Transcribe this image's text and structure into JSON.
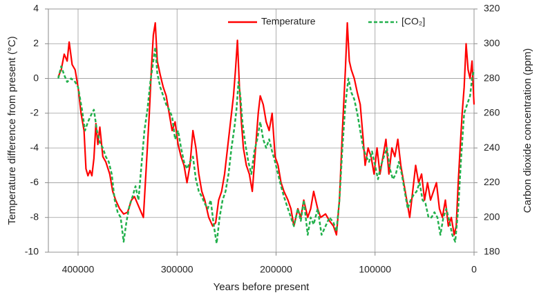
{
  "chart_data": {
    "type": "line",
    "xlabel": "Years before present",
    "ylabel": "Temperature difference from present (°C)",
    "y2label": "Carbon dioxide concentration (ppm)",
    "xlim": [
      430000,
      0
    ],
    "xticks": [
      400000,
      300000,
      200000,
      100000,
      0
    ],
    "ylim": [
      -10,
      4
    ],
    "yticks": [
      -10,
      -8,
      -6,
      -4,
      -2,
      0,
      2,
      4
    ],
    "y2lim": [
      180,
      320
    ],
    "y2ticks": [
      180,
      200,
      220,
      240,
      260,
      280,
      300,
      320
    ],
    "grid": true,
    "legend": "top-right",
    "series": [
      {
        "name": "Temperature",
        "color": "#ff0000",
        "dash": false,
        "axis": "y",
        "x": [
          420000,
          417000,
          414000,
          411000,
          409000,
          406000,
          403000,
          400000,
          397000,
          394000,
          392000,
          390000,
          388000,
          386000,
          384000,
          382000,
          380000,
          378000,
          375000,
          372000,
          368000,
          365000,
          362000,
          358000,
          354000,
          350000,
          346000,
          343000,
          340000,
          337000,
          334000,
          331000,
          328000,
          326000,
          324000,
          322000,
          320000,
          317000,
          314000,
          311000,
          308000,
          305000,
          302000,
          299000,
          296000,
          293000,
          290000,
          287000,
          284000,
          281000,
          278000,
          275000,
          272000,
          268000,
          264000,
          261000,
          258000,
          255000,
          252000,
          249000,
          246000,
          243000,
          241000,
          239000,
          237000,
          235000,
          233000,
          230000,
          227000,
          224000,
          222000,
          220000,
          218000,
          216000,
          213000,
          210000,
          207000,
          204000,
          201000,
          198000,
          195000,
          192000,
          188000,
          185000,
          182000,
          178000,
          175000,
          172000,
          168000,
          165000,
          162000,
          158000,
          155000,
          150000,
          146000,
          142000,
          139000,
          136000,
          133000,
          130000,
          128000,
          126000,
          124000,
          121000,
          118000,
          115000,
          112000,
          110000,
          107000,
          104000,
          101000,
          98000,
          95000,
          92000,
          89000,
          86000,
          83000,
          80000,
          77000,
          74000,
          71000,
          68000,
          65000,
          62000,
          59000,
          56000,
          53000,
          50000,
          47000,
          44000,
          41000,
          38000,
          35000,
          32000,
          29000,
          26000,
          23000,
          20000,
          18000,
          16000,
          14000,
          12000,
          10000,
          8000,
          6000,
          4000,
          2000,
          0
        ],
        "values": [
          0.1,
          0.5,
          1.4,
          1.0,
          2.1,
          0.8,
          0.5,
          -0.5,
          -2.0,
          -3.0,
          -5.2,
          -5.6,
          -5.3,
          -5.6,
          -4.6,
          -2.6,
          -3.8,
          -2.8,
          -4.5,
          -4.8,
          -5.5,
          -6.5,
          -7.0,
          -7.5,
          -7.8,
          -7.7,
          -7.0,
          -6.8,
          -7.2,
          -7.6,
          -8.0,
          -5.0,
          -2.0,
          0.5,
          2.5,
          3.2,
          1.0,
          0.2,
          -0.5,
          -1.0,
          -2.0,
          -3.0,
          -2.5,
          -3.8,
          -4.5,
          -5.0,
          -6.0,
          -5.0,
          -3.0,
          -4.0,
          -5.5,
          -6.5,
          -7.0,
          -8.0,
          -8.5,
          -8.3,
          -7.0,
          -6.5,
          -5.5,
          -4.0,
          -2.5,
          -1.0,
          0.5,
          2.2,
          -0.5,
          -2.5,
          -4.0,
          -5.0,
          -5.5,
          -6.5,
          -5.0,
          -3.5,
          -2.0,
          -1.0,
          -1.5,
          -2.5,
          -3.0,
          -2.0,
          -4.5,
          -5.0,
          -6.0,
          -6.5,
          -7.0,
          -7.5,
          -8.5,
          -7.5,
          -8.0,
          -7.0,
          -8.0,
          -7.5,
          -6.5,
          -7.5,
          -8.0,
          -7.8,
          -8.2,
          -8.5,
          -9.0,
          -7.0,
          -3.0,
          0.5,
          3.2,
          1.0,
          0.5,
          0.0,
          -0.8,
          -1.5,
          -3.5,
          -5.0,
          -4.0,
          -4.5,
          -5.5,
          -4.0,
          -5.5,
          -4.5,
          -3.5,
          -5.5,
          -4.0,
          -4.5,
          -3.5,
          -5.0,
          -6.0,
          -7.0,
          -8.0,
          -6.5,
          -5.0,
          -6.0,
          -5.5,
          -7.0,
          -6.0,
          -7.0,
          -6.5,
          -6.0,
          -7.5,
          -8.0,
          -7.0,
          -8.5,
          -8.0,
          -9.0,
          -8.5,
          -6.0,
          -4.0,
          -2.0,
          -0.5,
          2.0,
          0.5,
          0.0,
          1.0,
          -1.5
        ]
      },
      {
        "name": "[CO₂]",
        "color": "#22b04c",
        "dash": true,
        "axis": "y2",
        "x": [
          420000,
          417000,
          414000,
          411000,
          407000,
          403000,
          400000,
          396000,
          393000,
          390000,
          386000,
          384000,
          381000,
          378000,
          375000,
          372000,
          369000,
          366000,
          363000,
          360000,
          357000,
          354000,
          351000,
          348000,
          345000,
          342000,
          339000,
          336000,
          333000,
          330000,
          327000,
          324000,
          322000,
          320000,
          317000,
          314000,
          311000,
          308000,
          305000,
          302000,
          299000,
          296000,
          293000,
          290000,
          287000,
          284000,
          281000,
          278000,
          275000,
          272000,
          269000,
          266000,
          263000,
          260000,
          257000,
          254000,
          251000,
          248000,
          245000,
          242000,
          240000,
          238000,
          236000,
          234000,
          231000,
          228000,
          225000,
          222000,
          219000,
          216000,
          213000,
          210000,
          207000,
          204000,
          201000,
          198000,
          195000,
          192000,
          188000,
          185000,
          182000,
          178000,
          175000,
          172000,
          168000,
          165000,
          162000,
          158000,
          154000,
          150000,
          146000,
          142000,
          139000,
          136000,
          133000,
          130000,
          127000,
          124000,
          121000,
          118000,
          115000,
          112000,
          109000,
          106000,
          103000,
          100000,
          97000,
          94000,
          91000,
          88000,
          85000,
          82000,
          79000,
          76000,
          73000,
          70000,
          67000,
          64000,
          61000,
          58000,
          55000,
          52000,
          49000,
          46000,
          43000,
          40000,
          37000,
          34000,
          31000,
          28000,
          25000,
          22000,
          19000,
          16000,
          13000,
          10000,
          7000,
          4000,
          2000,
          0
        ],
        "values": [
          280,
          287,
          282,
          278,
          280,
          278,
          275,
          262,
          250,
          255,
          260,
          262,
          250,
          243,
          240,
          235,
          232,
          225,
          210,
          203,
          200,
          186,
          198,
          207,
          212,
          218,
          210,
          230,
          250,
          262,
          278,
          290,
          298,
          283,
          275,
          270,
          265,
          262,
          258,
          245,
          250,
          240,
          232,
          228,
          232,
          235,
          222,
          215,
          212,
          208,
          205,
          210,
          196,
          185,
          200,
          210,
          215,
          225,
          240,
          252,
          262,
          278,
          270,
          255,
          242,
          232,
          225,
          238,
          245,
          255,
          245,
          240,
          245,
          238,
          232,
          225,
          218,
          212,
          205,
          200,
          195,
          205,
          198,
          210,
          190,
          200,
          196,
          205,
          190,
          195,
          200,
          197,
          192,
          210,
          240,
          265,
          280,
          272,
          268,
          260,
          250,
          240,
          235,
          232,
          238,
          230,
          222,
          230,
          235,
          240,
          228,
          222,
          225,
          232,
          225,
          215,
          205,
          210,
          213,
          215,
          220,
          210,
          208,
          200,
          200,
          203,
          200,
          190,
          200,
          205,
          198,
          190,
          186,
          205,
          235,
          260,
          265,
          270,
          280,
          285
        ]
      }
    ]
  }
}
